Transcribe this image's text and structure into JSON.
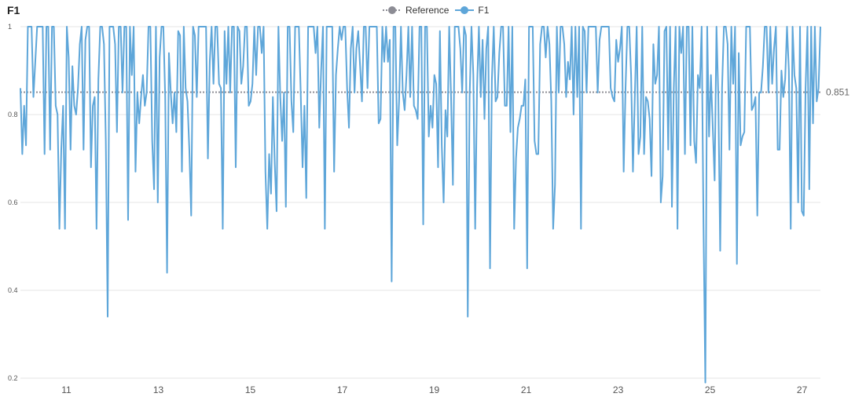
{
  "chart_data": {
    "type": "line",
    "title": "F1",
    "xlim": [
      10,
      27.4
    ],
    "ylim": [
      0.2,
      1.0
    ],
    "x_ticks": [
      11,
      13,
      15,
      17,
      19,
      21,
      23,
      25,
      27
    ],
    "y_ticks": [
      0.2,
      0.4,
      0.6,
      0.8,
      1
    ],
    "grid": true,
    "legend": {
      "position": "top-center",
      "entries": [
        "Reference",
        "F1"
      ]
    },
    "reference": {
      "name": "Reference",
      "value": 0.851,
      "label": "0.851",
      "color": "#8c8c94",
      "style": "dotted"
    },
    "series": [
      {
        "name": "F1",
        "color": "#5ea6d9",
        "x_start": 10,
        "x_end": 27.4,
        "values": [
          0.86,
          0.71,
          0.82,
          0.73,
          1,
          1,
          1,
          0.84,
          0.92,
          1,
          1,
          1,
          1,
          0.71,
          1,
          1,
          0.72,
          1,
          1,
          0.82,
          0.8,
          0.54,
          0.72,
          0.82,
          0.54,
          1,
          0.93,
          0.72,
          0.91,
          0.82,
          0.8,
          0.86,
          0.96,
          1,
          0.72,
          0.97,
          1,
          1,
          0.68,
          0.82,
          0.84,
          0.54,
          0.88,
          1,
          1,
          0.96,
          0.74,
          0.34,
          1,
          1,
          1,
          0.96,
          0.76,
          1,
          1,
          0.85,
          1,
          1,
          0.56,
          1,
          0.89,
          1,
          0.67,
          0.85,
          0.78,
          0.84,
          0.89,
          0.82,
          0.85,
          1,
          1,
          0.74,
          0.63,
          1,
          0.6,
          0.93,
          1,
          1,
          0.84,
          0.44,
          0.94,
          0.85,
          0.78,
          0.85,
          0.76,
          0.99,
          0.98,
          0.67,
          1,
          0.86,
          0.83,
          0.72,
          0.57,
          1,
          0.98,
          0.84,
          1,
          1,
          1,
          1,
          1,
          0.7,
          0.92,
          1,
          0.87,
          1,
          1,
          0.87,
          0.86,
          0.54,
          0.99,
          0.87,
          1,
          0.85,
          1,
          1,
          0.68,
          1,
          0.99,
          0.87,
          0.91,
          1,
          1,
          0.82,
          0.83,
          0.87,
          1,
          0.89,
          1,
          1,
          0.94,
          1,
          0.67,
          0.54,
          0.71,
          0.62,
          0.84,
          0.69,
          0.58,
          1,
          0.84,
          0.74,
          0.85,
          0.59,
          1,
          1,
          0.83,
          0.76,
          1,
          1,
          1,
          0.85,
          0.68,
          0.82,
          0.61,
          1,
          1,
          1,
          1,
          0.94,
          1,
          0.77,
          0.9,
          1,
          0.54,
          1,
          1,
          1,
          1,
          0.67,
          0.89,
          0.95,
          1,
          0.97,
          1,
          1,
          0.86,
          0.77,
          0.95,
          1,
          0.85,
          0.95,
          0.99,
          0.91,
          0.83,
          1,
          1,
          0.86,
          1,
          1,
          1,
          1,
          1,
          0.78,
          0.79,
          1,
          0.92,
          1,
          0.92,
          0.97,
          0.42,
          1,
          1,
          0.73,
          0.83,
          1,
          0.85,
          0.81,
          0.89,
          1,
          0.84,
          1,
          0.82,
          0.81,
          0.79,
          1,
          1,
          0.55,
          1,
          1,
          0.75,
          0.82,
          0.77,
          0.89,
          0.87,
          0.68,
          0.99,
          0.73,
          0.6,
          0.81,
          0.75,
          1,
          0.84,
          0.64,
          1,
          1,
          1,
          0.95,
          0.85,
          1,
          0.98,
          0.34,
          0.84,
          1,
          0.89,
          0.54,
          0.86,
          1,
          0.84,
          0.97,
          0.79,
          0.95,
          1,
          0.45,
          0.88,
          1,
          0.83,
          0.84,
          0.94,
          1,
          1,
          0.82,
          0.82,
          1,
          0.76,
          1,
          0.54,
          0.7,
          0.77,
          0.79,
          0.82,
          0.82,
          0.88,
          0.45,
          1,
          1,
          1,
          0.74,
          0.71,
          0.71,
          0.96,
          1,
          1,
          0.93,
          1,
          0.96,
          0.83,
          0.54,
          0.64,
          1,
          0.85,
          1,
          1,
          0.96,
          0.84,
          0.92,
          0.88,
          1,
          0.8,
          1,
          0.84,
          1,
          0.54,
          1,
          0.99,
          0.85,
          1,
          1,
          1,
          1,
          1,
          0.85,
          0.97,
          1,
          1,
          1,
          1,
          1,
          0.86,
          0.84,
          0.83,
          0.97,
          0.92,
          0.95,
          1,
          0.67,
          0.86,
          1,
          1,
          0.89,
          0.67,
          0.84,
          1,
          0.71,
          0.75,
          1,
          0.71,
          0.84,
          0.83,
          0.79,
          0.66,
          0.96,
          0.87,
          0.89,
          1,
          0.6,
          0.66,
          0.99,
          1,
          0.72,
          1,
          0.59,
          0.86,
          1,
          0.54,
          1,
          0.94,
          1,
          0.71,
          1,
          1,
          0.73,
          1,
          0.74,
          0.69,
          0.89,
          0.86,
          1,
          0.55,
          0.19,
          1,
          0.75,
          0.89,
          0.77,
          0.65,
          1,
          0.84,
          0.49,
          0.86,
          1,
          1,
          0.96,
          0.72,
          1,
          0.87,
          1,
          0.46,
          0.94,
          0.73,
          0.75,
          0.76,
          1,
          1,
          1,
          0.81,
          0.82,
          0.84,
          0.57,
          0.85,
          0.85,
          0.91,
          1,
          1,
          0.85,
          1,
          0.87,
          0.95,
          1,
          0.72,
          0.72,
          0.9,
          0.84,
          0.88,
          1,
          0.9,
          0.54,
          1,
          0.89,
          0.86,
          0.6,
          1,
          0.58,
          0.57,
          0.86,
          1,
          0.63,
          1,
          0.78,
          1,
          0.83,
          0.86,
          1
        ]
      }
    ]
  }
}
